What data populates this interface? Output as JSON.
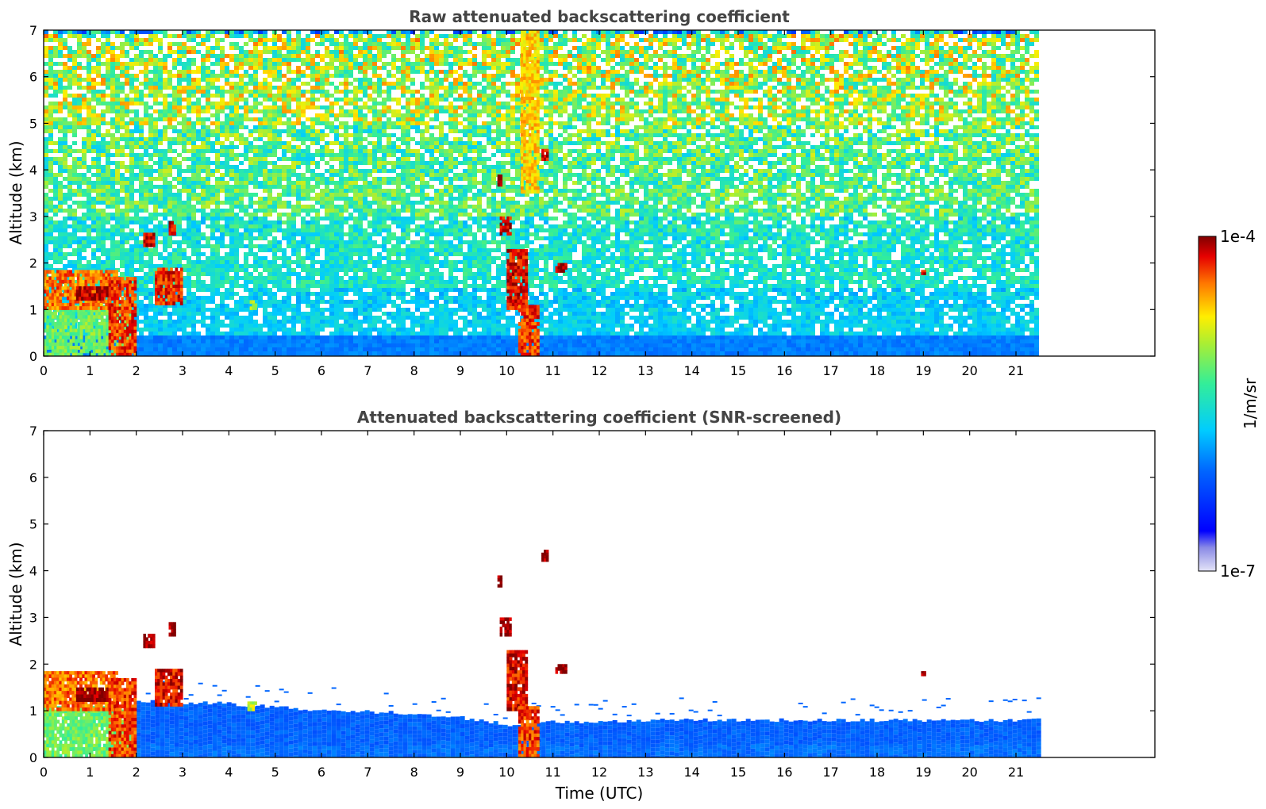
{
  "chart_data": [
    {
      "type": "heatmap",
      "title": "Raw attenuated backscattering coefficient",
      "xlabel": "",
      "ylabel": "Altitude (km)",
      "xlim": [
        0,
        24
      ],
      "ylim": [
        0,
        7
      ],
      "x_ticks": [
        0,
        1,
        2,
        3,
        4,
        5,
        6,
        7,
        8,
        9,
        10,
        11,
        12,
        13,
        14,
        15,
        16,
        17,
        18,
        19,
        20,
        21
      ],
      "y_ticks": [
        0,
        1,
        2,
        3,
        4,
        5,
        6,
        7
      ],
      "data_end_time": 21.45,
      "background": [
        {
          "alt_from": 0.0,
          "alt_to": 0.5,
          "level": 0.42
        },
        {
          "alt_from": 0.5,
          "alt_to": 1.5,
          "level": 0.44
        },
        {
          "alt_from": 1.5,
          "alt_to": 3.0,
          "level": 0.5
        },
        {
          "alt_from": 3.0,
          "alt_to": 5.0,
          "level": 0.58
        },
        {
          "alt_from": 5.0,
          "alt_to": 7.0,
          "level": 0.66
        }
      ],
      "features": [
        {
          "t0": 0.0,
          "t1": 1.9,
          "alt0": 0.0,
          "alt1": 1.1,
          "level": 0.62
        },
        {
          "t0": 0.0,
          "t1": 1.6,
          "alt0": 1.0,
          "alt1": 1.85,
          "level": 0.86
        },
        {
          "t0": 0.7,
          "t1": 1.4,
          "alt0": 1.2,
          "alt1": 1.5,
          "level": 0.98
        },
        {
          "t0": 1.4,
          "t1": 2.0,
          "alt0": 0.0,
          "alt1": 1.7,
          "level": 0.9
        },
        {
          "t0": 2.15,
          "t1": 2.4,
          "alt0": 2.35,
          "alt1": 2.65,
          "level": 0.96
        },
        {
          "t0": 2.4,
          "t1": 3.0,
          "alt0": 1.1,
          "alt1": 1.9,
          "level": 0.92
        },
        {
          "t0": 2.7,
          "t1": 2.85,
          "alt0": 2.6,
          "alt1": 2.9,
          "level": 0.94
        },
        {
          "t0": 4.4,
          "t1": 4.6,
          "alt0": 1.0,
          "alt1": 1.2,
          "level": 0.7
        },
        {
          "t0": 9.85,
          "t1": 10.1,
          "alt0": 2.6,
          "alt1": 3.0,
          "level": 0.96
        },
        {
          "t0": 9.8,
          "t1": 9.9,
          "alt0": 3.65,
          "alt1": 3.9,
          "level": 0.95
        },
        {
          "t0": 10.0,
          "t1": 10.45,
          "alt0": 1.0,
          "alt1": 2.3,
          "level": 0.94
        },
        {
          "t0": 10.25,
          "t1": 10.7,
          "alt0": 0.0,
          "alt1": 1.1,
          "level": 0.9
        },
        {
          "t0": 10.3,
          "t1": 10.7,
          "alt0": 3.5,
          "alt1": 7.0,
          "level": 0.78
        },
        {
          "t0": 10.75,
          "t1": 10.9,
          "alt0": 4.2,
          "alt1": 4.45,
          "level": 0.95
        },
        {
          "t0": 11.05,
          "t1": 11.3,
          "alt0": 1.8,
          "alt1": 2.0,
          "level": 0.98
        },
        {
          "t0": 18.95,
          "t1": 19.05,
          "alt0": 1.75,
          "alt1": 1.85,
          "level": 0.95
        }
      ]
    },
    {
      "type": "heatmap",
      "title": "Attenuated backscattering coefficient (SNR-screened)",
      "xlabel": "Time (UTC)",
      "ylabel": "Altitude (km)",
      "xlim": [
        0,
        24
      ],
      "ylim": [
        0,
        7
      ],
      "x_ticks": [
        0,
        1,
        2,
        3,
        4,
        5,
        6,
        7,
        8,
        9,
        10,
        11,
        12,
        13,
        14,
        15,
        16,
        17,
        18,
        19,
        20,
        21
      ],
      "y_ticks": [
        0,
        1,
        2,
        3,
        4,
        5,
        6,
        7
      ],
      "data_end_time": 21.45,
      "boundary_layer": [
        {
          "t": 2.0,
          "top": 1.2
        },
        {
          "t": 4.0,
          "top": 1.15
        },
        {
          "t": 6.0,
          "top": 1.0
        },
        {
          "t": 8.0,
          "top": 0.95
        },
        {
          "t": 9.0,
          "top": 0.85
        },
        {
          "t": 10.0,
          "top": 0.7
        },
        {
          "t": 10.8,
          "top": 0.75
        },
        {
          "t": 13.0,
          "top": 0.8
        },
        {
          "t": 16.0,
          "top": 0.8
        },
        {
          "t": 21.45,
          "top": 0.8
        }
      ],
      "features": [
        {
          "t0": 0.0,
          "t1": 1.9,
          "alt0": 0.0,
          "alt1": 1.1,
          "level": 0.62
        },
        {
          "t0": 0.0,
          "t1": 1.6,
          "alt0": 1.0,
          "alt1": 1.85,
          "level": 0.86
        },
        {
          "t0": 0.7,
          "t1": 1.4,
          "alt0": 1.2,
          "alt1": 1.5,
          "level": 1.0
        },
        {
          "t0": 1.4,
          "t1": 2.0,
          "alt0": 0.0,
          "alt1": 1.7,
          "level": 0.9
        },
        {
          "t0": 2.15,
          "t1": 2.4,
          "alt0": 2.35,
          "alt1": 2.65,
          "level": 1.0
        },
        {
          "t0": 2.4,
          "t1": 3.0,
          "alt0": 1.1,
          "alt1": 1.9,
          "level": 0.94
        },
        {
          "t0": 2.7,
          "t1": 2.85,
          "alt0": 2.6,
          "alt1": 2.9,
          "level": 1.0
        },
        {
          "t0": 4.4,
          "t1": 4.6,
          "alt0": 1.0,
          "alt1": 1.2,
          "level": 0.7
        },
        {
          "t0": 9.85,
          "t1": 10.1,
          "alt0": 2.6,
          "alt1": 3.0,
          "level": 1.0
        },
        {
          "t0": 9.8,
          "t1": 9.9,
          "alt0": 3.65,
          "alt1": 3.9,
          "level": 1.0
        },
        {
          "t0": 10.0,
          "t1": 10.45,
          "alt0": 1.0,
          "alt1": 2.3,
          "level": 0.94
        },
        {
          "t0": 10.25,
          "t1": 10.7,
          "alt0": 0.0,
          "alt1": 1.1,
          "level": 0.9
        },
        {
          "t0": 10.75,
          "t1": 10.9,
          "alt0": 4.2,
          "alt1": 4.45,
          "level": 1.0
        },
        {
          "t0": 11.05,
          "t1": 11.3,
          "alt0": 1.8,
          "alt1": 2.0,
          "level": 1.0
        },
        {
          "t0": 18.95,
          "t1": 19.05,
          "alt0": 1.75,
          "alt1": 1.85,
          "level": 1.0
        }
      ]
    }
  ],
  "colorbar": {
    "label": "1/m/sr",
    "max_label": "1e-4",
    "min_label": "1e-7",
    "scale": "log",
    "colormap": "jet"
  }
}
